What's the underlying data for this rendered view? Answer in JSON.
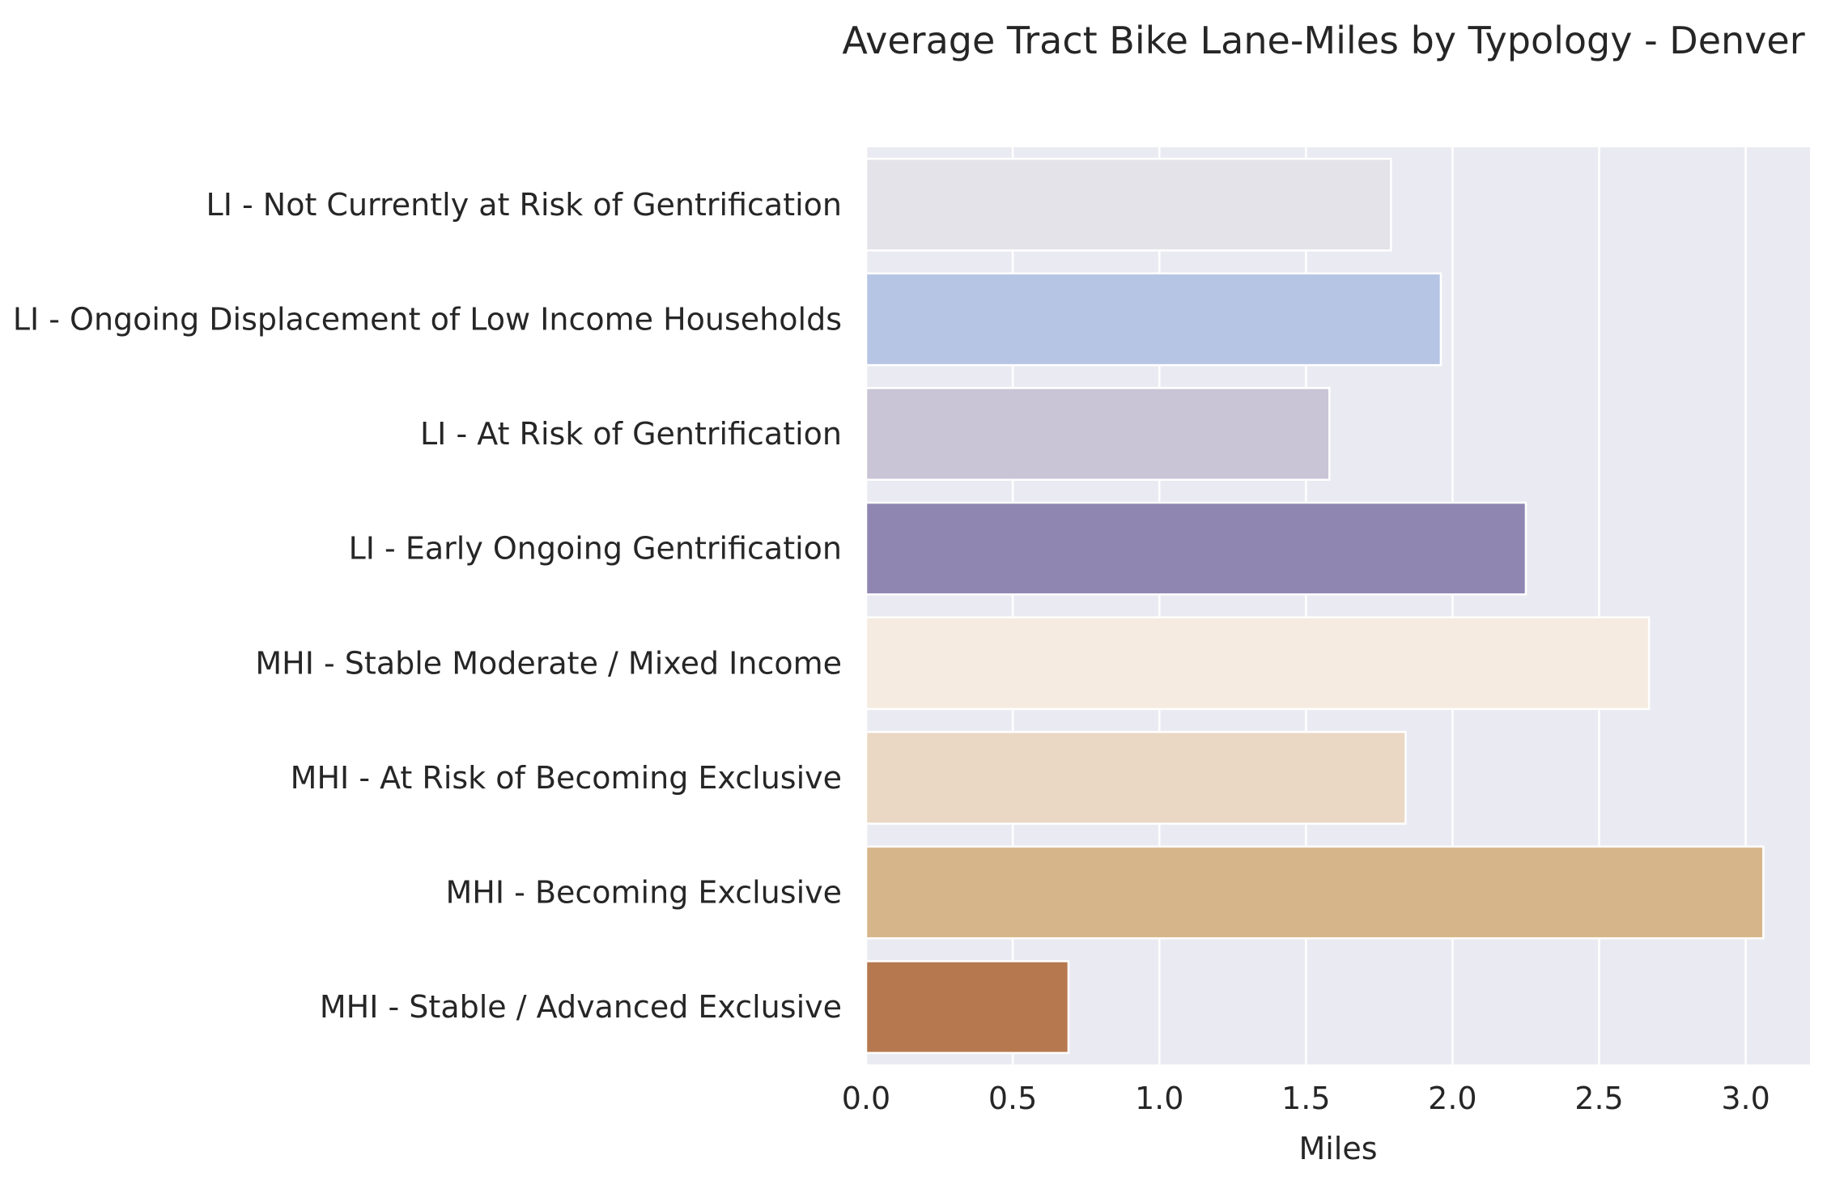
{
  "chart_data": {
    "type": "bar",
    "orientation": "horizontal",
    "title": "Average Tract Bike Lane-Miles by Typology - Denver",
    "xlabel": "Miles",
    "ylabel": "",
    "xlim": [
      0,
      3.2
    ],
    "xticks": [
      "0.0",
      "0.5",
      "1.0",
      "1.5",
      "2.0",
      "2.5",
      "3.0"
    ],
    "grid": true,
    "categories": [
      "LI - Not Currently at Risk of Gentrification",
      "LI - Ongoing Displacement of Low Income Households",
      "LI - At Risk of Gentrification",
      "LI - Early Ongoing Gentrification",
      "MHI - Stable Moderate / Mixed Income",
      "MHI - At Risk of Becoming Exclusive",
      "MHI - Becoming Exclusive",
      "MHI - Stable / Advanced Exclusive"
    ],
    "values": [
      1.79,
      1.96,
      1.58,
      2.25,
      2.67,
      1.84,
      3.06,
      0.69
    ],
    "colors": [
      "#e4e3ea",
      "#b6c5e4",
      "#c9c5d6",
      "#8f87b2",
      "#f5ebe0",
      "#ead8c4",
      "#d7b58b",
      "#b6784f"
    ],
    "background": "#eaeaf2",
    "gridcolor": "#ffffff"
  }
}
